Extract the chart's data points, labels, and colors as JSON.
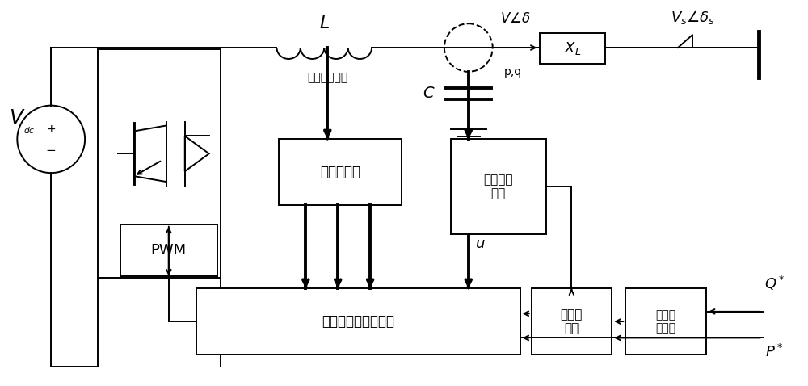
{
  "figsize": [
    10.0,
    4.78
  ],
  "dpi": 100,
  "texts": {
    "sample_label": "电压电流采样",
    "lpf_label": "低通滤波器",
    "pwm_label": "PWM",
    "vsg_label": "虚拟同步发电机算法",
    "vc_label": "电压电流\n采集",
    "stab_label": "稳定控\n制器",
    "rg_label": "无功积\n分增益"
  },
  "lw": 1.4,
  "lw2": 2.8,
  "lw_bus": 3.5
}
